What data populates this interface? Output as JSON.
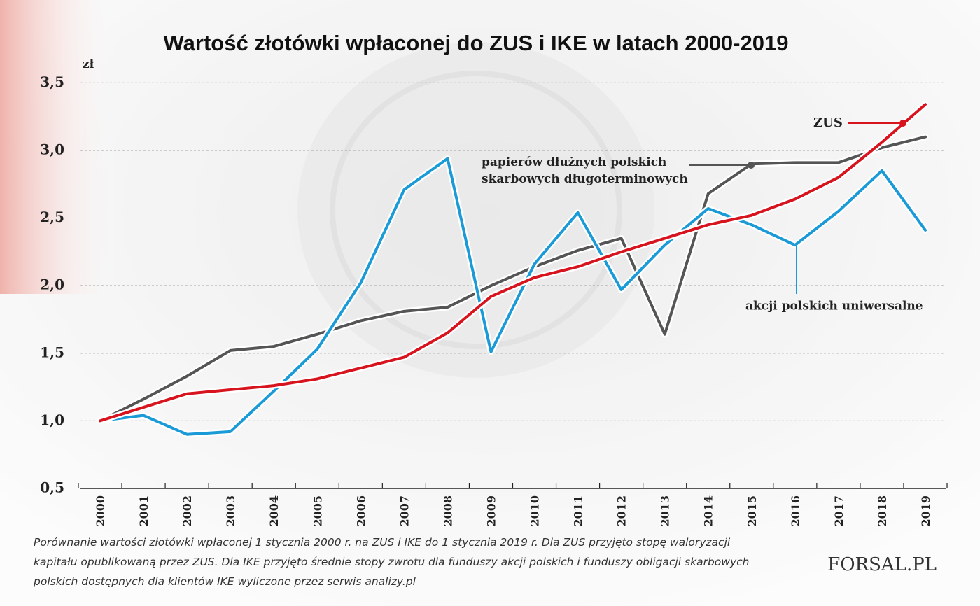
{
  "chart_data": {
    "type": "line",
    "title": "Wartość złotówki wpłaconej do ZUS i IKE w latach 2000-2019",
    "y_unit": "zł",
    "categories": [
      "2000",
      "2001",
      "2002",
      "2003",
      "2004",
      "2005",
      "2006",
      "2007",
      "2008",
      "2009",
      "2010",
      "2011",
      "2012",
      "2013",
      "2014",
      "2015",
      "2016",
      "2017",
      "2018",
      "2019"
    ],
    "series": [
      {
        "name": "papierów dłużnych polskich skarbowych długoterminowych",
        "color": "#555555",
        "values": [
          1.0,
          1.16,
          1.33,
          1.52,
          1.55,
          1.64,
          1.74,
          1.81,
          1.84,
          2.0,
          2.14,
          2.26,
          2.35,
          1.64,
          2.68,
          2.9,
          2.91,
          2.91,
          3.02,
          3.1
        ]
      },
      {
        "name": "akcji polskich uniwersalne",
        "color": "#1a9ad6",
        "values": [
          1.0,
          1.04,
          0.9,
          0.92,
          1.22,
          1.53,
          2.02,
          2.71,
          2.94,
          1.51,
          2.16,
          2.54,
          1.97,
          2.3,
          2.57,
          2.45,
          2.3,
          2.55,
          2.85,
          2.41
        ]
      },
      {
        "name": "ZUS",
        "color": "#d7141e",
        "values": [
          1.0,
          1.1,
          1.2,
          1.23,
          1.26,
          1.31,
          1.39,
          1.47,
          1.65,
          1.92,
          2.06,
          2.14,
          2.25,
          2.35,
          2.45,
          2.52,
          2.64,
          2.8,
          3.06,
          3.34
        ]
      }
    ],
    "ylim": [
      0.5,
      3.6
    ],
    "yticks": [
      {
        "value": 0.5,
        "label": "0,5"
      },
      {
        "value": 1.0,
        "label": "1,0"
      },
      {
        "value": 1.5,
        "label": "1,5"
      },
      {
        "value": 2.0,
        "label": "2,0"
      },
      {
        "value": 2.5,
        "label": "2,5"
      },
      {
        "value": 3.0,
        "label": "3,0"
      },
      {
        "value": 3.5,
        "label": "3,5"
      }
    ],
    "grid": true,
    "note": [
      "Porównanie wartości złotówki wpłaconej 1 stycznia 2000 r. na ZUS i IKE do 1 stycznia 2019 r. Dla ZUS przyjęto stopę waloryzacji",
      "kapitału opublikowaną przez ZUS. Dla IKE przyjęto średnie stopy zwrotu dla funduszy akcji polskich i funduszy obligacji skarbowych",
      "polskich dostępnych dla klientów IKE wyliczone przez serwis analizy.pl"
    ],
    "source": "FORSAL.PL"
  }
}
